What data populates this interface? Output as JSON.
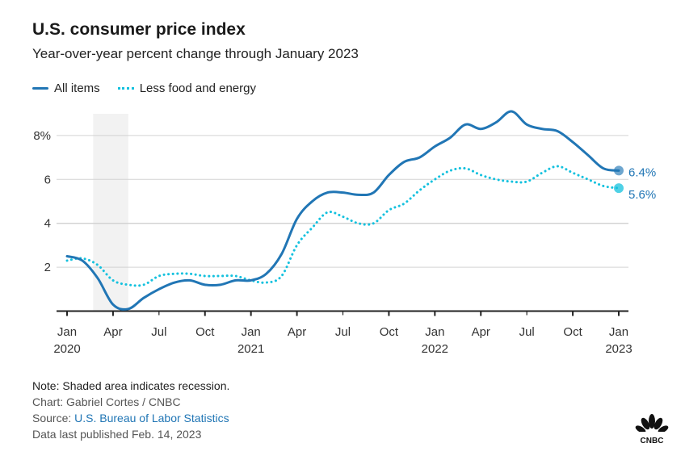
{
  "header": {
    "title": "U.S. consumer price index",
    "subtitle": "Year-over-year percent change through January 2023"
  },
  "legend": {
    "items": [
      {
        "label": "All items",
        "style": "solid",
        "color": "#2176b5"
      },
      {
        "label": "Less food and energy",
        "style": "dotted",
        "color": "#14c1de"
      }
    ]
  },
  "footer": {
    "note": "Note: Shaded area indicates recession.",
    "credit": "Chart: Gabriel Cortes / CNBC",
    "source_prefix": "Source: ",
    "source_link": "U.S. Bureau of Labor Statistics",
    "published": "Data last published Feb. 14, 2023",
    "logo_text": "CNBC"
  },
  "chart_data": {
    "type": "line",
    "title": "U.S. consumer price index",
    "subtitle": "Year-over-year percent change through January 2023",
    "xlabel": "",
    "ylabel": "",
    "ylim": [
      0,
      9.2
    ],
    "yticks": [
      2,
      4,
      6,
      8
    ],
    "ytick_labels": [
      "2",
      "4",
      "6",
      "8%"
    ],
    "grid": true,
    "legend_position": "top-left",
    "x_start": "2020-01",
    "x_end": "2023-01",
    "x": [
      "2020-01",
      "2020-02",
      "2020-03",
      "2020-04",
      "2020-05",
      "2020-06",
      "2020-07",
      "2020-08",
      "2020-09",
      "2020-10",
      "2020-11",
      "2020-12",
      "2021-01",
      "2021-02",
      "2021-03",
      "2021-04",
      "2021-05",
      "2021-06",
      "2021-07",
      "2021-08",
      "2021-09",
      "2021-10",
      "2021-11",
      "2021-12",
      "2022-01",
      "2022-02",
      "2022-03",
      "2022-04",
      "2022-05",
      "2022-06",
      "2022-07",
      "2022-08",
      "2022-09",
      "2022-10",
      "2022-11",
      "2022-12",
      "2023-01"
    ],
    "xticks": [
      {
        "month_index": 0,
        "label": "Jan",
        "year": "2020"
      },
      {
        "month_index": 3,
        "label": "Apr",
        "year": ""
      },
      {
        "month_index": 6,
        "label": "Jul",
        "year": ""
      },
      {
        "month_index": 9,
        "label": "Oct",
        "year": ""
      },
      {
        "month_index": 12,
        "label": "Jan",
        "year": "2021"
      },
      {
        "month_index": 15,
        "label": "Apr",
        "year": ""
      },
      {
        "month_index": 18,
        "label": "Jul",
        "year": ""
      },
      {
        "month_index": 21,
        "label": "Oct",
        "year": ""
      },
      {
        "month_index": 24,
        "label": "Jan",
        "year": "2022"
      },
      {
        "month_index": 27,
        "label": "Apr",
        "year": ""
      },
      {
        "month_index": 30,
        "label": "Jul",
        "year": ""
      },
      {
        "month_index": 33,
        "label": "Oct",
        "year": ""
      },
      {
        "month_index": 36,
        "label": "Jan",
        "year": "2023"
      }
    ],
    "shaded_regions": [
      {
        "label": "recession",
        "start_month_index": 2,
        "end_month_index": 4,
        "color": "#f2f2f2"
      }
    ],
    "series": [
      {
        "name": "All items",
        "style": "solid",
        "color": "#2176b5",
        "end_label": "6.4%",
        "values": [
          2.5,
          2.3,
          1.5,
          0.3,
          0.1,
          0.6,
          1.0,
          1.3,
          1.4,
          1.2,
          1.2,
          1.4,
          1.4,
          1.7,
          2.6,
          4.2,
          5.0,
          5.4,
          5.4,
          5.3,
          5.4,
          6.2,
          6.8,
          7.0,
          7.5,
          7.9,
          8.5,
          8.3,
          8.6,
          9.1,
          8.5,
          8.3,
          8.2,
          7.7,
          7.1,
          6.5,
          6.4
        ]
      },
      {
        "name": "Less food and energy",
        "style": "dotted",
        "color": "#14c1de",
        "end_label": "5.6%",
        "values": [
          2.3,
          2.4,
          2.1,
          1.4,
          1.2,
          1.2,
          1.6,
          1.7,
          1.7,
          1.6,
          1.6,
          1.6,
          1.4,
          1.3,
          1.6,
          3.0,
          3.8,
          4.5,
          4.3,
          4.0,
          4.0,
          4.6,
          4.9,
          5.5,
          6.0,
          6.4,
          6.5,
          6.2,
          6.0,
          5.9,
          5.9,
          6.3,
          6.6,
          6.3,
          6.0,
          5.7,
          5.6
        ]
      }
    ]
  }
}
